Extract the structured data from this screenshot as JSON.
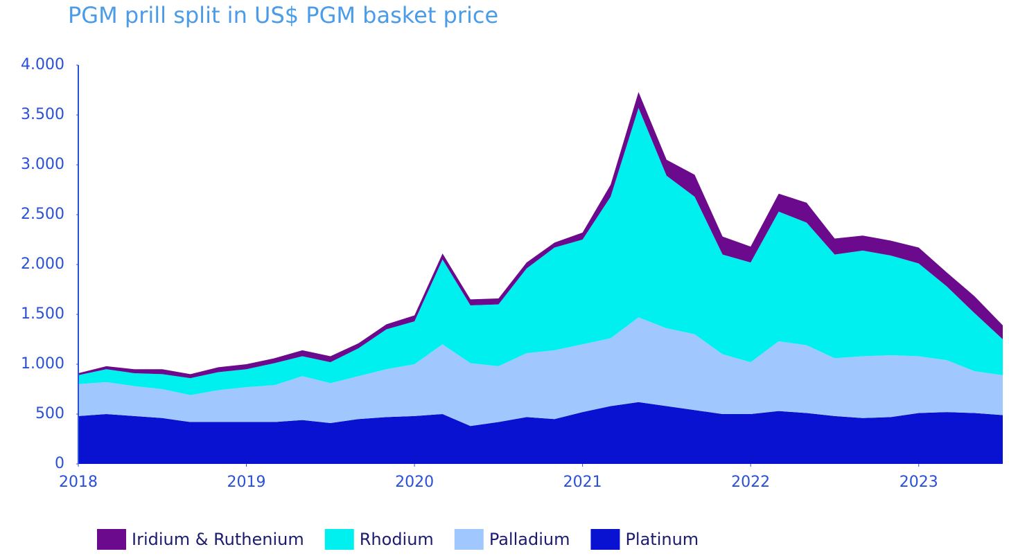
{
  "chart_data": {
    "type": "stacked_area",
    "title": "PGM prill split in US$ PGM basket price",
    "x": [
      2018.0,
      2018.167,
      2018.333,
      2018.5,
      2018.667,
      2018.833,
      2019.0,
      2019.167,
      2019.333,
      2019.5,
      2019.667,
      2019.833,
      2020.0,
      2020.167,
      2020.333,
      2020.5,
      2020.667,
      2020.833,
      2021.0,
      2021.167,
      2021.333,
      2021.5,
      2021.667,
      2021.833,
      2022.0,
      2022.167,
      2022.333,
      2022.5,
      2022.667,
      2022.833,
      2023.0,
      2023.167,
      2023.333,
      2023.5
    ],
    "series": [
      {
        "name": "Iridium & Ruthenium",
        "color": "#6b0a8c",
        "values": [
          20,
          30,
          40,
          50,
          40,
          50,
          50,
          50,
          60,
          60,
          50,
          50,
          60,
          60,
          60,
          60,
          60,
          50,
          70,
          120,
          160,
          160,
          220,
          180,
          160,
          180,
          200,
          160,
          150,
          150,
          160,
          140,
          170,
          140
        ]
      },
      {
        "name": "Rhodium",
        "color": "#00f0f0",
        "values": [
          90,
          130,
          130,
          150,
          170,
          180,
          180,
          220,
          200,
          210,
          280,
          400,
          430,
          850,
          580,
          620,
          850,
          1030,
          1050,
          1420,
          2100,
          1530,
          1380,
          1000,
          1000,
          1300,
          1230,
          1040,
          1060,
          1000,
          930,
          740,
          580,
          360
        ]
      },
      {
        "name": "Palladium",
        "color": "#a0c8ff",
        "values": [
          320,
          320,
          300,
          290,
          270,
          320,
          350,
          370,
          440,
          400,
          430,
          480,
          520,
          700,
          630,
          560,
          640,
          690,
          680,
          680,
          850,
          780,
          760,
          600,
          520,
          700,
          680,
          580,
          620,
          620,
          570,
          520,
          420,
          400
        ]
      },
      {
        "name": "Platinum",
        "color": "#0a12d2",
        "values": [
          480,
          500,
          480,
          460,
          420,
          420,
          420,
          420,
          440,
          410,
          450,
          470,
          480,
          500,
          380,
          420,
          470,
          450,
          520,
          580,
          620,
          580,
          540,
          500,
          500,
          530,
          510,
          480,
          460,
          470,
          510,
          520,
          510,
          490
        ]
      }
    ],
    "xlim": [
      2018,
      2023.5
    ],
    "xticks": [
      2018,
      2019,
      2020,
      2021,
      2022,
      2023
    ],
    "ylim": [
      0,
      4000
    ],
    "yticks": [
      0,
      500,
      {
        "value": 1000,
        "label": "1.000"
      },
      {
        "value": 1500,
        "label": "1.500"
      },
      {
        "value": 2000,
        "label": "2.000"
      },
      {
        "value": 2500,
        "label": "2.500"
      },
      {
        "value": 3000,
        "label": "3.000"
      },
      {
        "value": 3500,
        "label": "3.500"
      },
      {
        "value": 4000,
        "label": "4.000"
      }
    ]
  }
}
